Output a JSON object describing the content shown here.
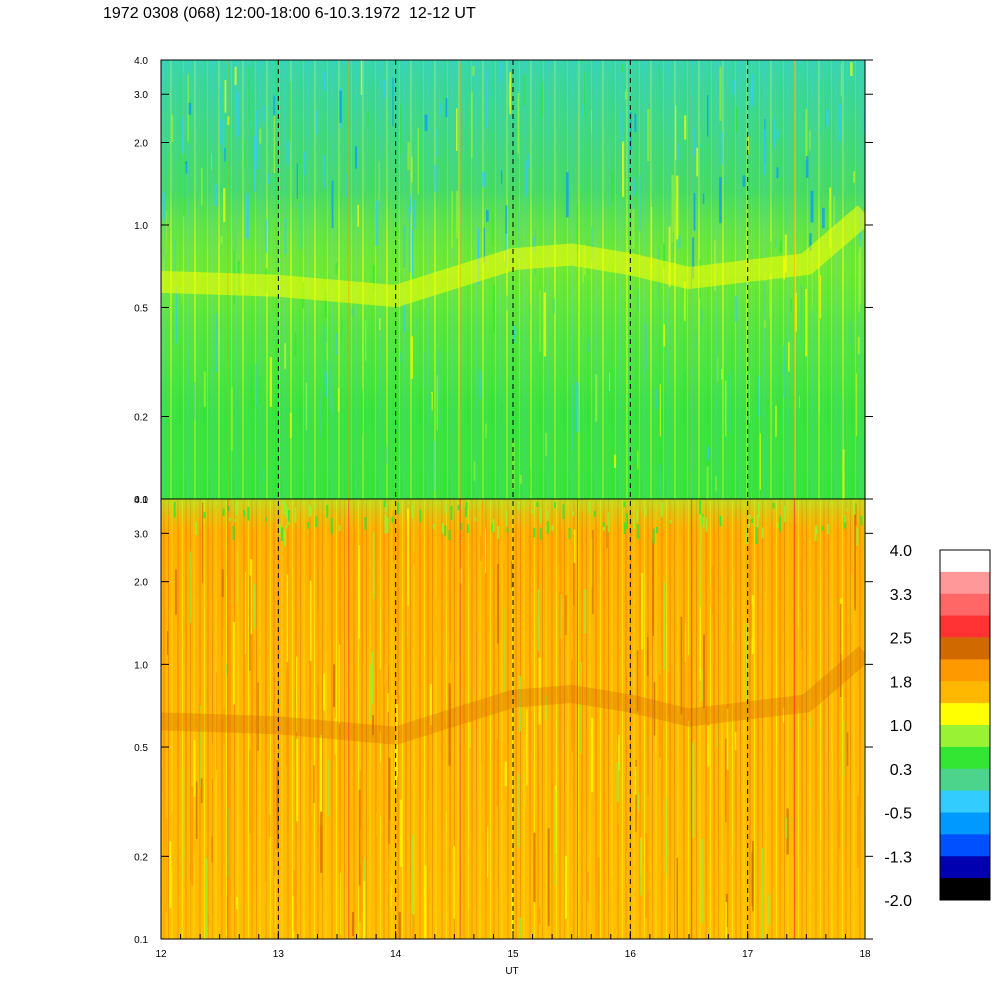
{
  "header": {
    "title": "1972 0308 (068) 12:00-18:00 6-10.3.1972  12-12 UT"
  },
  "chart_data": {
    "type": "heatmap",
    "title": "1972 0308 (068) 12:00-18:00 6-10.3.1972  12-12 UT",
    "xlabel": "UT",
    "x_range": [
      12,
      18
    ],
    "x_ticks": [
      "12",
      "13",
      "14",
      "15",
      "16",
      "17",
      "18"
    ],
    "y_scale": "log",
    "panels": [
      {
        "name": "top",
        "y_range": [
          0.1,
          4.0
        ],
        "y_ticks": [
          {
            "value": 0.1,
            "label": "0.1"
          },
          {
            "value": 0.2,
            "label": "0.2"
          },
          {
            "value": 0.5,
            "label": "0.5"
          },
          {
            "value": 1.0,
            "label": "1.0"
          },
          {
            "value": 2.0,
            "label": "2.0"
          },
          {
            "value": 3.0,
            "label": "3.0"
          },
          {
            "value": 4.0,
            "label": "4.0"
          }
        ],
        "dominant_colors": [
          "#33e633",
          "#4dd48c",
          "#99f233",
          "#ffff00",
          "#33ccff"
        ]
      },
      {
        "name": "bottom",
        "y_range": [
          0.1,
          4.0
        ],
        "y_ticks": [
          {
            "value": 0.1,
            "label": "0.1"
          },
          {
            "value": 0.2,
            "label": "0.2"
          },
          {
            "value": 0.5,
            "label": "0.5"
          },
          {
            "value": 1.0,
            "label": "1.0"
          },
          {
            "value": 2.0,
            "label": "2.0"
          },
          {
            "value": 3.0,
            "label": "3.0"
          },
          {
            "value": 4.0,
            "label": "4.0"
          }
        ],
        "dominant_colors": [
          "#ffb800",
          "#ff9900",
          "#ffff00",
          "#99f233",
          "#d06a00"
        ]
      }
    ],
    "dashed_gridlines_x": [
      13,
      14,
      15,
      16,
      17
    ],
    "colorbar": {
      "range": [
        -2.0,
        4.0
      ],
      "labels": [
        "4.0",
        "3.3",
        "2.5",
        "1.8",
        "1.0",
        "0.3",
        "-0.5",
        "-1.3",
        "-2.0"
      ],
      "colors_top_to_bottom": [
        "#ffffff",
        "#ff9999",
        "#ff6666",
        "#ff3333",
        "#d06a00",
        "#ff9900",
        "#ffb800",
        "#ffff00",
        "#99f233",
        "#33e633",
        "#4dd48c",
        "#33ccff",
        "#0099ff",
        "#0050ff",
        "#0000b0",
        "#000000"
      ]
    }
  }
}
